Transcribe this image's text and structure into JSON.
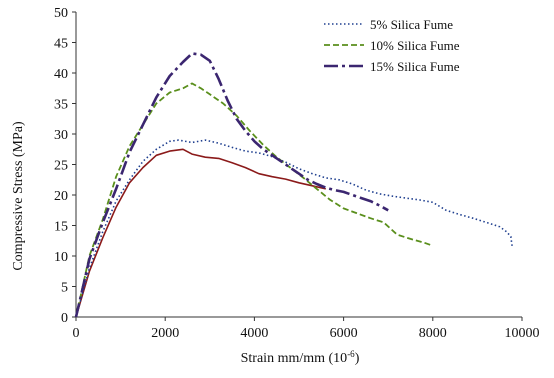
{
  "chart_data": {
    "type": "line",
    "title": "",
    "xlabel": "Strain mm/mm (10",
    "xlabel_exponent": "-6",
    "xlabel_suffix": ")",
    "ylabel": "Compressive Stress (MPa)",
    "xlim": [
      0,
      10000
    ],
    "ylim": [
      0,
      50
    ],
    "xticks": [
      "0",
      "2000",
      "4000",
      "6000",
      "8000",
      "10000"
    ],
    "yticks": [
      "0",
      "5",
      "10",
      "15",
      "20",
      "25",
      "30",
      "35",
      "40",
      "45",
      "50"
    ],
    "grid": false,
    "legend_position": "top-right",
    "series": [
      {
        "name": "5% Silica Fume",
        "color": "#1f3f8f",
        "dash": "dotted",
        "x": [
          0,
          300,
          600,
          900,
          1200,
          1500,
          1800,
          2100,
          2300,
          2600,
          2900,
          3200,
          3500,
          3800,
          4100,
          4400,
          4700,
          5000,
          5300,
          5600,
          5900,
          6200,
          6500,
          6800,
          7100,
          7400,
          7700,
          8000,
          8300,
          8600,
          8900,
          9200,
          9500,
          9650,
          9750,
          9780
        ],
        "y": [
          0,
          8,
          14,
          19,
          22.5,
          25.5,
          27.5,
          28.8,
          29,
          28.6,
          29,
          28.5,
          27.8,
          27.2,
          26.9,
          26.3,
          25.4,
          24.3,
          23.5,
          22.8,
          22.5,
          21.8,
          20.8,
          20.2,
          19.8,
          19.5,
          19.2,
          18.8,
          17.5,
          16.8,
          16.2,
          15.5,
          14.8,
          14,
          13.2,
          11.5
        ]
      },
      {
        "name": "10% Silica Fume",
        "color": "#5a8f1c",
        "dash": "dashed",
        "x": [
          0,
          300,
          600,
          900,
          1200,
          1500,
          1800,
          2100,
          2400,
          2600,
          2800,
          3000,
          3300,
          3600,
          3900,
          4200,
          4500,
          4800,
          5100,
          5400,
          5700,
          6000,
          6300,
          6600,
          6900,
          7200,
          7500,
          7800,
          7950
        ],
        "y": [
          0,
          10,
          16,
          23,
          28,
          31.5,
          35,
          36.8,
          37.5,
          38.3,
          37.5,
          36.5,
          35,
          33,
          30.5,
          28.2,
          26.2,
          24.5,
          22.8,
          21,
          19.2,
          17.8,
          17,
          16.2,
          15.5,
          13.5,
          12.8,
          12.2,
          11.8
        ]
      },
      {
        "name": "15% Silica Fume",
        "color": "#3b2670",
        "dash": "dashdot",
        "x": [
          0,
          300,
          600,
          900,
          1200,
          1500,
          1800,
          2100,
          2400,
          2600,
          2800,
          3000,
          3200,
          3400,
          3600,
          3800,
          4000,
          4200,
          4400,
          4600,
          4800,
          5000,
          5200,
          5400,
          5600,
          5800,
          6000,
          6200,
          6400,
          6600,
          6800,
          7000
        ],
        "y": [
          0,
          9.5,
          15.5,
          21,
          27,
          31.5,
          36,
          39.5,
          41.8,
          43.2,
          43,
          42,
          39,
          35.5,
          32.5,
          30.5,
          28.8,
          27.5,
          26.5,
          25.5,
          24.5,
          23.5,
          22.5,
          21.8,
          21.2,
          20.8,
          20.5,
          20,
          19.5,
          19,
          18.3,
          17.5
        ]
      },
      {
        "name": "",
        "color": "#8b1a1a",
        "dash": "solid",
        "x": [
          0,
          300,
          600,
          900,
          1200,
          1500,
          1800,
          2100,
          2400,
          2600,
          2900,
          3200,
          3500,
          3800,
          4100,
          4400,
          4700,
          5000,
          5300,
          5600
        ],
        "y": [
          0,
          7.5,
          13,
          18,
          22,
          24.5,
          26.5,
          27.2,
          27.5,
          26.7,
          26.2,
          26,
          25.3,
          24.5,
          23.5,
          23,
          22.6,
          22,
          21.5,
          21
        ]
      }
    ]
  }
}
